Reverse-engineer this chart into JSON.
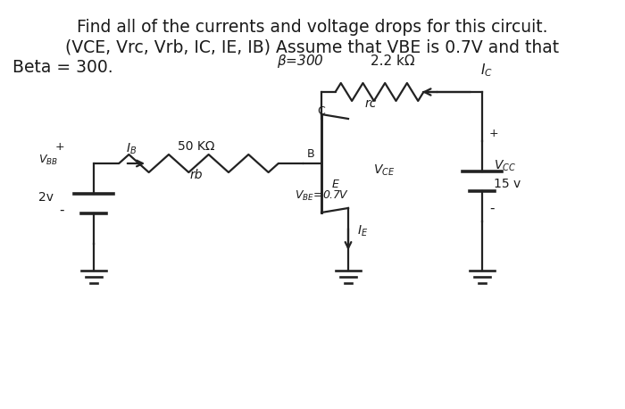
{
  "title_line1": "Find all of the currents and voltage drops for this circuit.",
  "title_line2": "(VCE, Vrc, Vrb, IC, IE, IB) Assume that VBE is 0.7V and that",
  "title_line3": "Beta = 300.",
  "bg_color": "#ffffff",
  "text_color": "#1a1a1a",
  "circuit_color": "#222222",
  "title_fontsize": 13.5,
  "circuit_fontsize": 11,
  "label_fontsize": 10
}
